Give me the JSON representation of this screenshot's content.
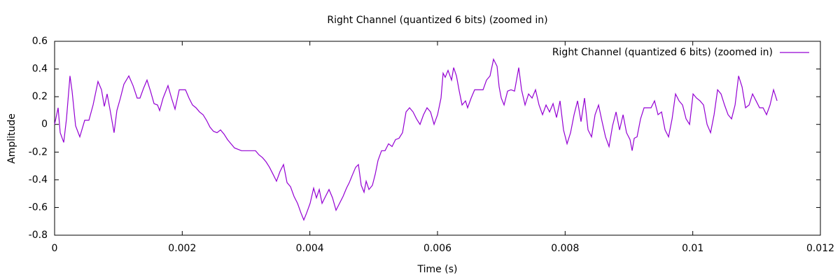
{
  "chart_data": {
    "type": "line",
    "title": "Right Channel (quantized 6 bits) (zoomed in)",
    "x_label": "Time (s)",
    "y_label": "Amplitude",
    "xlim": [
      0,
      0.012
    ],
    "ylim": [
      -0.8,
      0.6
    ],
    "xticks": [
      0,
      0.002,
      0.004,
      0.006,
      0.008,
      0.01,
      0.012
    ],
    "yticks": [
      0.6,
      0.4,
      0.2,
      0,
      -0.2,
      -0.4,
      -0.6,
      -0.8
    ],
    "legend": "top right",
    "grid": false,
    "x": [
      0,
      5.5e-05,
      8.8e-05,
      0.000143,
      0.000186,
      0.000241,
      0.000274,
      0.000329,
      0.000395,
      0.000472,
      0.000538,
      0.000603,
      0.00068,
      0.000735,
      0.000779,
      0.000823,
      0.000867,
      0.000932,
      0.000976,
      0.001031,
      0.001086,
      0.001163,
      0.001229,
      0.001294,
      0.001338,
      0.001393,
      0.001448,
      0.001503,
      0.001558,
      0.001613,
      0.001646,
      0.0017,
      0.001777,
      0.001832,
      0.001887,
      0.001953,
      0.002051,
      0.002106,
      0.002161,
      0.002216,
      0.002271,
      0.002326,
      0.00238,
      0.002435,
      0.00249,
      0.002545,
      0.0026,
      0.002655,
      0.00271,
      0.002764,
      0.002819,
      0.002929,
      0.003148,
      0.003203,
      0.003258,
      0.003313,
      0.003368,
      0.003423,
      0.003477,
      0.003532,
      0.003587,
      0.003642,
      0.003697,
      0.003752,
      0.003807,
      0.003861,
      0.003905,
      0.003949,
      0.004004,
      0.004059,
      0.004103,
      0.004147,
      0.004191,
      0.004245,
      0.0043,
      0.004355,
      0.00441,
      0.004465,
      0.00452,
      0.004574,
      0.004618,
      0.004662,
      0.004717,
      0.004761,
      0.004805,
      0.004849,
      0.004882,
      0.004926,
      0.00498,
      0.005024,
      0.005068,
      0.005123,
      0.005178,
      0.005233,
      0.005288,
      0.005342,
      0.005397,
      0.005452,
      0.005507,
      0.005562,
      0.005617,
      0.005671,
      0.005726,
      0.005781,
      0.005836,
      0.005891,
      0.005946,
      0.006001,
      0.006055,
      0.006088,
      0.006121,
      0.006165,
      0.00622,
      0.006253,
      0.006297,
      0.006341,
      0.006385,
      0.006439,
      0.006472,
      0.006527,
      0.006582,
      0.006714,
      0.006768,
      0.006823,
      0.006878,
      0.006933,
      0.006966,
      0.006999,
      0.007043,
      0.007098,
      0.007152,
      0.007207,
      0.007273,
      0.007317,
      0.007372,
      0.007427,
      0.007482,
      0.007536,
      0.007591,
      0.007646,
      0.007701,
      0.007756,
      0.007811,
      0.007865,
      0.00792,
      0.007975,
      0.00803,
      0.008085,
      0.00814,
      0.008195,
      0.008249,
      0.008304,
      0.008359,
      0.008414,
      0.008469,
      0.008524,
      0.008579,
      0.008633,
      0.008688,
      0.008743,
      0.008798,
      0.008853,
      0.008908,
      0.008962,
      0.009017,
      0.00905,
      0.009083,
      0.009127,
      0.009182,
      0.009237,
      0.009346,
      0.009401,
      0.009456,
      0.009511,
      0.009566,
      0.009621,
      0.009676,
      0.00973,
      0.009785,
      0.00984,
      0.009895,
      0.00995,
      0.010005,
      0.010059,
      0.010114,
      0.010169,
      0.010224,
      0.010279,
      0.010334,
      0.010389,
      0.010443,
      0.010498,
      0.010553,
      0.010608,
      0.010663,
      0.010718,
      0.010773,
      0.010827,
      0.010882,
      0.010937,
      0.010992,
      0.011047,
      0.011102,
      0.011156,
      0.011211,
      0.011266,
      0.011321
    ],
    "series": [
      {
        "name": "Right Channel (quantized 6 bits) (zoomed in)",
        "color": "#9400d3",
        "values": [
          0,
          0.12,
          -0.06,
          -0.13,
          0.04,
          0.35,
          0.24,
          -0.01,
          -0.09,
          0.03,
          0.03,
          0.14,
          0.31,
          0.25,
          0.13,
          0.22,
          0.11,
          -0.06,
          0.1,
          0.19,
          0.29,
          0.35,
          0.28,
          0.19,
          0.19,
          0.26,
          0.32,
          0.24,
          0.15,
          0.14,
          0.1,
          0.19,
          0.28,
          0.19,
          0.11,
          0.25,
          0.25,
          0.19,
          0.14,
          0.12,
          0.09,
          0.07,
          0.03,
          -0.02,
          -0.05,
          -0.06,
          -0.04,
          -0.07,
          -0.11,
          -0.14,
          -0.17,
          -0.19,
          -0.19,
          -0.22,
          -0.24,
          -0.27,
          -0.31,
          -0.36,
          -0.41,
          -0.34,
          -0.29,
          -0.42,
          -0.45,
          -0.52,
          -0.57,
          -0.64,
          -0.69,
          -0.64,
          -0.57,
          -0.46,
          -0.53,
          -0.47,
          -0.57,
          -0.52,
          -0.47,
          -0.53,
          -0.62,
          -0.57,
          -0.52,
          -0.46,
          -0.42,
          -0.37,
          -0.31,
          -0.29,
          -0.44,
          -0.49,
          -0.41,
          -0.47,
          -0.44,
          -0.36,
          -0.26,
          -0.19,
          -0.19,
          -0.14,
          -0.16,
          -0.11,
          -0.1,
          -0.06,
          0.09,
          0.12,
          0.09,
          0.04,
          0,
          0.07,
          0.12,
          0.09,
          0,
          0.07,
          0.19,
          0.37,
          0.34,
          0.39,
          0.32,
          0.41,
          0.35,
          0.24,
          0.14,
          0.17,
          0.12,
          0.19,
          0.25,
          0.25,
          0.32,
          0.35,
          0.47,
          0.42,
          0.27,
          0.19,
          0.14,
          0.24,
          0.25,
          0.24,
          0.41,
          0.25,
          0.14,
          0.22,
          0.19,
          0.25,
          0.14,
          0.07,
          0.14,
          0.09,
          0.15,
          0.05,
          0.17,
          -0.04,
          -0.14,
          -0.06,
          0.07,
          0.17,
          0.02,
          0.19,
          -0.04,
          -0.09,
          0.07,
          0.14,
          0.02,
          -0.09,
          -0.16,
          -0.01,
          0.09,
          -0.04,
          0.07,
          -0.06,
          -0.11,
          -0.19,
          -0.1,
          -0.09,
          0.04,
          0.12,
          0.12,
          0.17,
          0.07,
          0.09,
          -0.04,
          -0.09,
          0.04,
          0.22,
          0.17,
          0.14,
          0.04,
          0,
          0.22,
          0.19,
          0.17,
          0.14,
          0,
          -0.06,
          0.07,
          0.25,
          0.22,
          0.14,
          0.07,
          0.04,
          0.14,
          0.35,
          0.27,
          0.12,
          0.14,
          0.22,
          0.17,
          0.12,
          0.12,
          0.07,
          0.14,
          0.25,
          0.17
        ]
      }
    ]
  }
}
